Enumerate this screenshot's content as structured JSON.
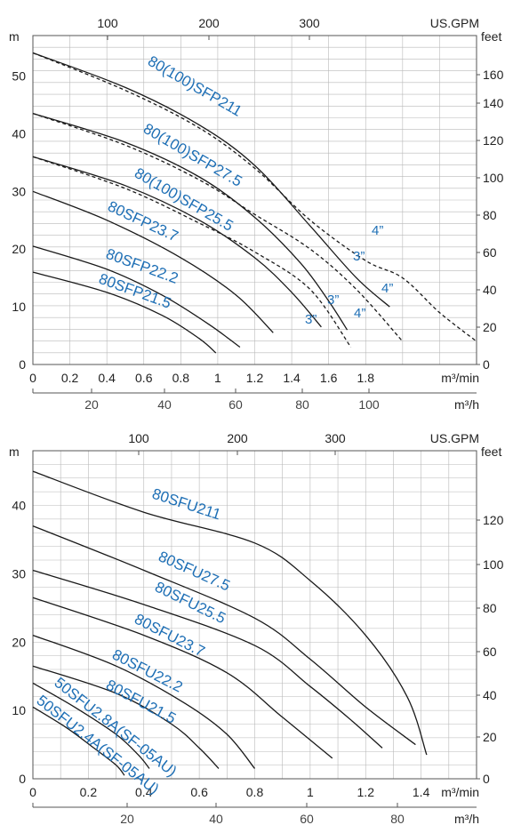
{
  "chart_data": [
    {
      "type": "line",
      "axes": {
        "x_bottom": {
          "label": "m³/min",
          "range": [
            0,
            2.4
          ],
          "ticks": [
            0,
            0.2,
            0.4,
            0.6,
            0.8,
            1.0,
            1.2,
            1.4,
            1.6,
            1.8
          ]
        },
        "x_secondary": {
          "label": "m³/h",
          "ticks": [
            20,
            40,
            60,
            80,
            100
          ]
        },
        "x_top": {
          "label": "US.GPM",
          "ticks": [
            100,
            200,
            300
          ]
        },
        "y_left": {
          "label": "m",
          "range": [
            0,
            57
          ],
          "ticks": [
            0,
            10,
            20,
            30,
            40,
            50
          ]
        },
        "y_right": {
          "label": "feet",
          "ticks": [
            0,
            20,
            40,
            60,
            80,
            100,
            120,
            140,
            160
          ]
        }
      },
      "grid": true,
      "series": [
        {
          "name": "80(100)SFP211",
          "style": "solid",
          "points": [
            [
              0,
              54
            ],
            [
              0.5,
              48
            ],
            [
              0.9,
              41.5
            ],
            [
              1.2,
              34.5
            ],
            [
              1.5,
              24
            ],
            [
              1.75,
              15
            ],
            [
              1.93,
              10
            ]
          ]
        },
        {
          "name": "",
          "style": "dashed",
          "points": [
            [
              0,
              54
            ],
            [
              0.5,
              47.5
            ],
            [
              0.9,
              41
            ],
            [
              1.2,
              34
            ],
            [
              1.5,
              25
            ],
            [
              1.8,
              18
            ],
            [
              2.0,
              15
            ],
            [
              2.2,
              9
            ],
            [
              2.4,
              4
            ]
          ]
        },
        {
          "name": "80(100)SFP27.5",
          "style": "solid",
          "points": [
            [
              0,
              43.5
            ],
            [
              0.5,
              38.5
            ],
            [
              0.9,
              32.5
            ],
            [
              1.2,
              25.5
            ],
            [
              1.45,
              17.5
            ],
            [
              1.6,
              11
            ],
            [
              1.7,
              6
            ]
          ]
        },
        {
          "name": "",
          "style": "dashed",
          "points": [
            [
              0,
              43.5
            ],
            [
              0.5,
              38
            ],
            [
              0.9,
              32
            ],
            [
              1.2,
              26
            ],
            [
              1.5,
              20
            ],
            [
              1.75,
              13
            ],
            [
              2.0,
              4
            ]
          ]
        },
        {
          "name": "80(100)SFP25.5",
          "style": "solid",
          "points": [
            [
              0,
              36
            ],
            [
              0.5,
              31
            ],
            [
              0.9,
              25
            ],
            [
              1.2,
              18.5
            ],
            [
              1.4,
              12.5
            ],
            [
              1.56,
              6.5
            ]
          ]
        },
        {
          "name": "",
          "style": "dashed",
          "points": [
            [
              0,
              36
            ],
            [
              0.5,
              30.5
            ],
            [
              0.9,
              24.5
            ],
            [
              1.2,
              19.5
            ],
            [
              1.5,
              13
            ],
            [
              1.72,
              3
            ]
          ]
        },
        {
          "name": "80SFP23.7",
          "style": "solid",
          "points": [
            [
              0,
              30
            ],
            [
              0.4,
              25
            ],
            [
              0.8,
              18.5
            ],
            [
              1.1,
              12
            ],
            [
              1.3,
              5.5
            ]
          ]
        },
        {
          "name": "80SFP22.2",
          "style": "solid",
          "points": [
            [
              0,
              20.5
            ],
            [
              0.4,
              16.5
            ],
            [
              0.7,
              12
            ],
            [
              0.95,
              7
            ],
            [
              1.12,
              3
            ]
          ]
        },
        {
          "name": "80SFP21.5",
          "style": "solid",
          "points": [
            [
              0,
              16
            ],
            [
              0.4,
              12.5
            ],
            [
              0.7,
              8.5
            ],
            [
              0.9,
              4.5
            ],
            [
              0.99,
              2
            ]
          ]
        }
      ],
      "annotations": [
        "4”",
        "3”",
        "4”",
        "3”",
        "4”",
        "3”"
      ]
    },
    {
      "type": "line",
      "axes": {
        "x_bottom": {
          "label": "m³/min",
          "range": [
            0,
            1.6
          ],
          "ticks": [
            0,
            0.2,
            0.4,
            0.6,
            0.8,
            1.0,
            1.2,
            1.4
          ]
        },
        "x_secondary": {
          "label": "m³/h",
          "ticks": [
            20,
            40,
            60,
            80
          ]
        },
        "x_top": {
          "label": "US.GPM",
          "ticks": [
            100,
            200,
            300
          ]
        },
        "y_left": {
          "label": "m",
          "range": [
            0,
            48
          ],
          "ticks": [
            0,
            10,
            20,
            30,
            40
          ]
        },
        "y_right": {
          "label": "feet",
          "ticks": [
            0,
            20,
            40,
            60,
            80,
            100,
            120
          ]
        }
      },
      "grid": true,
      "series": [
        {
          "name": "80SFU211",
          "style": "solid",
          "points": [
            [
              0,
              45
            ],
            [
              0.4,
              39
            ],
            [
              0.8,
              34.5
            ],
            [
              1.0,
              29
            ],
            [
              1.2,
              21
            ],
            [
              1.35,
              12
            ],
            [
              1.42,
              3.5
            ]
          ]
        },
        {
          "name": "80SFU27.5",
          "style": "solid",
          "points": [
            [
              0,
              37
            ],
            [
              0.4,
              30.5
            ],
            [
              0.8,
              23.5
            ],
            [
              1.0,
              17.5
            ],
            [
              1.2,
              10.5
            ],
            [
              1.38,
              5
            ]
          ]
        },
        {
          "name": "80SFU25.5",
          "style": "solid",
          "points": [
            [
              0,
              30.5
            ],
            [
              0.4,
              25.5
            ],
            [
              0.8,
              19.5
            ],
            [
              1.0,
              13.5
            ],
            [
              1.15,
              8.5
            ],
            [
              1.26,
              4.5
            ]
          ]
        },
        {
          "name": "80SFU23.7",
          "style": "solid",
          "points": [
            [
              0,
              26.5
            ],
            [
              0.4,
              21
            ],
            [
              0.7,
              15.5
            ],
            [
              0.9,
              9
            ],
            [
              1.08,
              3
            ]
          ]
        },
        {
          "name": "80SFU22.2",
          "style": "solid",
          "points": [
            [
              0,
              21
            ],
            [
              0.3,
              16.5
            ],
            [
              0.55,
              11
            ],
            [
              0.7,
              6.5
            ],
            [
              0.8,
              1.5
            ]
          ]
        },
        {
          "name": "80SFU21.5",
          "style": "solid",
          "points": [
            [
              0,
              16.5
            ],
            [
              0.3,
              12.5
            ],
            [
              0.5,
              8
            ],
            [
              0.6,
              4.5
            ],
            [
              0.67,
              1.5
            ]
          ]
        },
        {
          "name": "50SFU2.8A(SF-05AU)",
          "style": "solid",
          "points": [
            [
              0,
              14
            ],
            [
              0.15,
              10.5
            ],
            [
              0.3,
              6.5
            ],
            [
              0.38,
              3.5
            ],
            [
              0.42,
              1.5
            ]
          ]
        },
        {
          "name": "50SFU2.4A(SF-05AU)",
          "style": "solid",
          "points": [
            [
              0,
              10.5
            ],
            [
              0.12,
              7.5
            ],
            [
              0.22,
              4.5
            ],
            [
              0.3,
              2
            ],
            [
              0.33,
              0.5
            ]
          ]
        }
      ]
    }
  ]
}
